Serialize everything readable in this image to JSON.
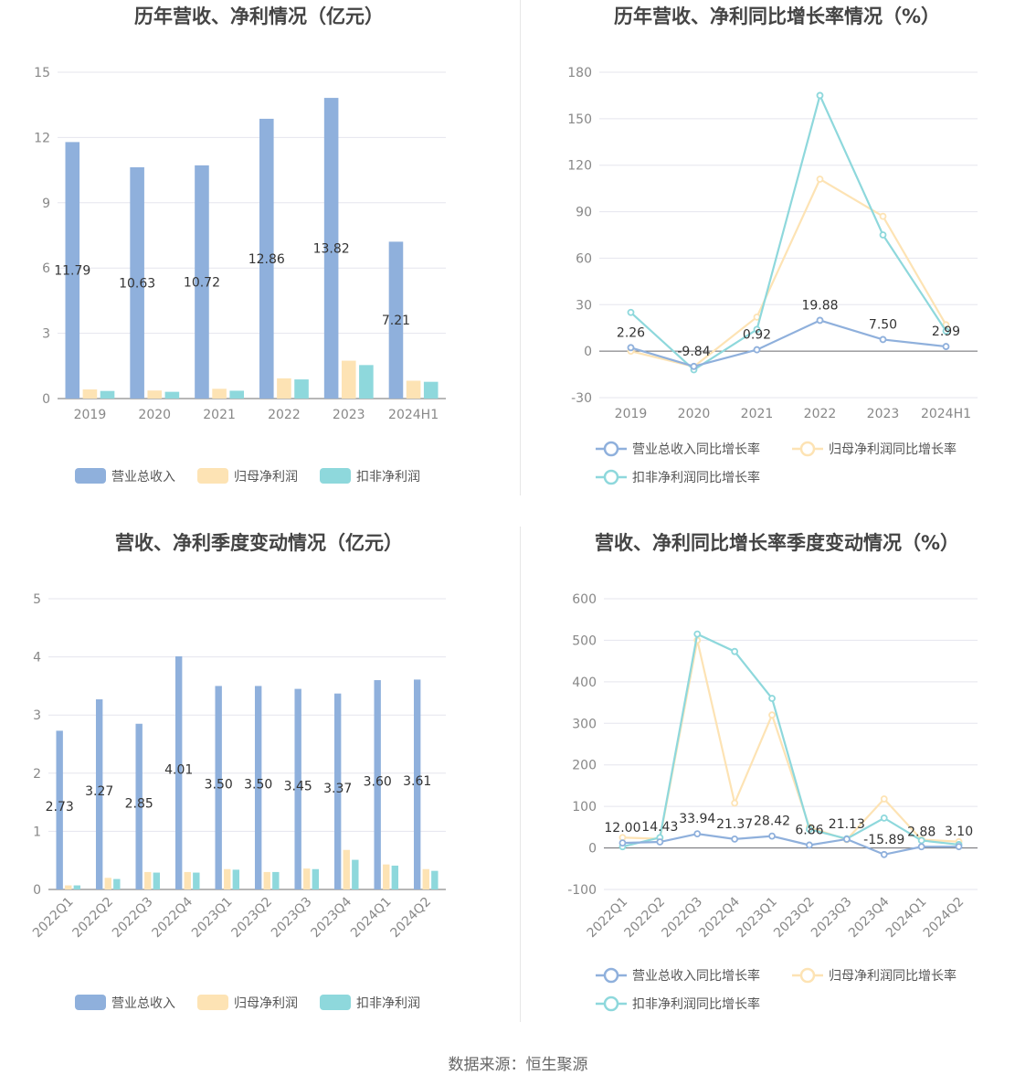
{
  "source": "数据来源：恒生聚源",
  "colors": {
    "revenue": "#8fb0dc",
    "parent": "#fde3b4",
    "nonrec": "#8ed8dc",
    "grid": "#e5e5ee",
    "axis": "#6f6f6f"
  },
  "legend_bar": [
    "营业总收入",
    "归母净利润",
    "扣非净利润"
  ],
  "legend_line": [
    "营业总收入同比增长率",
    "归母净利润同比增长率",
    "扣非净利润同比增长率"
  ],
  "chart_data": [
    {
      "type": "bar",
      "title": "历年营收、净利情况（亿元）",
      "categories": [
        "2019",
        "2020",
        "2021",
        "2022",
        "2023",
        "2024H1"
      ],
      "ylim": [
        0,
        15
      ],
      "yticks": [
        0,
        3,
        6,
        9,
        12,
        15
      ],
      "series": [
        {
          "name": "营业总收入",
          "values": [
            11.79,
            10.63,
            10.72,
            12.86,
            13.82,
            7.21
          ],
          "labels": [
            "11.79",
            "10.63",
            "10.72",
            "12.86",
            "13.82",
            "7.21"
          ]
        },
        {
          "name": "归母净利润",
          "values": [
            0.42,
            0.37,
            0.45,
            0.93,
            1.74,
            0.82
          ]
        },
        {
          "name": "扣非净利润",
          "values": [
            0.35,
            0.31,
            0.36,
            0.88,
            1.54,
            0.77
          ]
        }
      ],
      "legend": "bottom"
    },
    {
      "type": "line",
      "title": "历年营收、净利同比增长率情况（%）",
      "categories": [
        "2019",
        "2020",
        "2021",
        "2022",
        "2023",
        "2024H1"
      ],
      "ylim": [
        -30,
        180
      ],
      "yticks": [
        -30,
        0,
        30,
        60,
        90,
        120,
        150,
        180
      ],
      "series": [
        {
          "name": "营业总收入同比增长率",
          "values": [
            2.26,
            -9.84,
            0.92,
            19.88,
            7.5,
            2.99
          ],
          "labels": [
            "2.26",
            "-9.84",
            "0.92",
            "19.88",
            "7.50",
            "2.99"
          ]
        },
        {
          "name": "归母净利润同比增长率",
          "values": [
            0,
            -10,
            22,
            111,
            87,
            17
          ]
        },
        {
          "name": "扣非净利润同比增长率",
          "values": [
            25,
            -12,
            14,
            165,
            75,
            13
          ]
        }
      ],
      "legend": "bottom"
    },
    {
      "type": "bar",
      "title": "营收、净利季度变动情况（亿元）",
      "categories": [
        "2022Q1",
        "2022Q2",
        "2022Q3",
        "2022Q4",
        "2023Q1",
        "2023Q2",
        "2023Q3",
        "2023Q4",
        "2024Q1",
        "2024Q2"
      ],
      "ylim": [
        0,
        5
      ],
      "yticks": [
        0,
        1,
        2,
        3,
        4,
        5
      ],
      "series": [
        {
          "name": "营业总收入",
          "values": [
            2.73,
            3.27,
            2.85,
            4.01,
            3.5,
            3.5,
            3.45,
            3.37,
            3.6,
            3.61
          ],
          "labels": [
            "2.73",
            "3.27",
            "2.85",
            "4.01",
            "3.50",
            "3.50",
            "3.45",
            "3.37",
            "3.60",
            "3.61"
          ]
        },
        {
          "name": "归母净利润",
          "values": [
            0.07,
            0.2,
            0.3,
            0.3,
            0.35,
            0.3,
            0.36,
            0.68,
            0.43,
            0.35
          ]
        },
        {
          "name": "扣非净利润",
          "values": [
            0.07,
            0.18,
            0.29,
            0.29,
            0.34,
            0.3,
            0.35,
            0.51,
            0.41,
            0.32
          ]
        }
      ],
      "legend": "bottom"
    },
    {
      "type": "line",
      "title": "营收、净利同比增长率季度变动情况（%）",
      "categories": [
        "2022Q1",
        "2022Q2",
        "2022Q3",
        "2022Q4",
        "2023Q1",
        "2023Q2",
        "2023Q3",
        "2023Q4",
        "2024Q1",
        "2024Q2"
      ],
      "ylim": [
        -100,
        600
      ],
      "yticks": [
        -100,
        0,
        100,
        200,
        300,
        400,
        500,
        600
      ],
      "series": [
        {
          "name": "营业总收入同比增长率",
          "values": [
            12.0,
            14.43,
            33.94,
            21.37,
            28.42,
            6.86,
            21.13,
            -15.89,
            2.88,
            3.1
          ],
          "labels": [
            "12.00",
            "14.43",
            "33.94",
            "21.37",
            "28.42",
            "6.86",
            "21.13",
            "-15.89",
            "2.88",
            "3.10"
          ]
        },
        {
          "name": "归母净利润同比增长率",
          "values": [
            25,
            22,
            500,
            108,
            320,
            50,
            20,
            118,
            20,
            15
          ]
        },
        {
          "name": "扣非净利润同比增长率",
          "values": [
            3,
            25,
            515,
            473,
            360,
            45,
            22,
            72,
            18,
            8
          ]
        }
      ],
      "legend": "bottom"
    }
  ]
}
